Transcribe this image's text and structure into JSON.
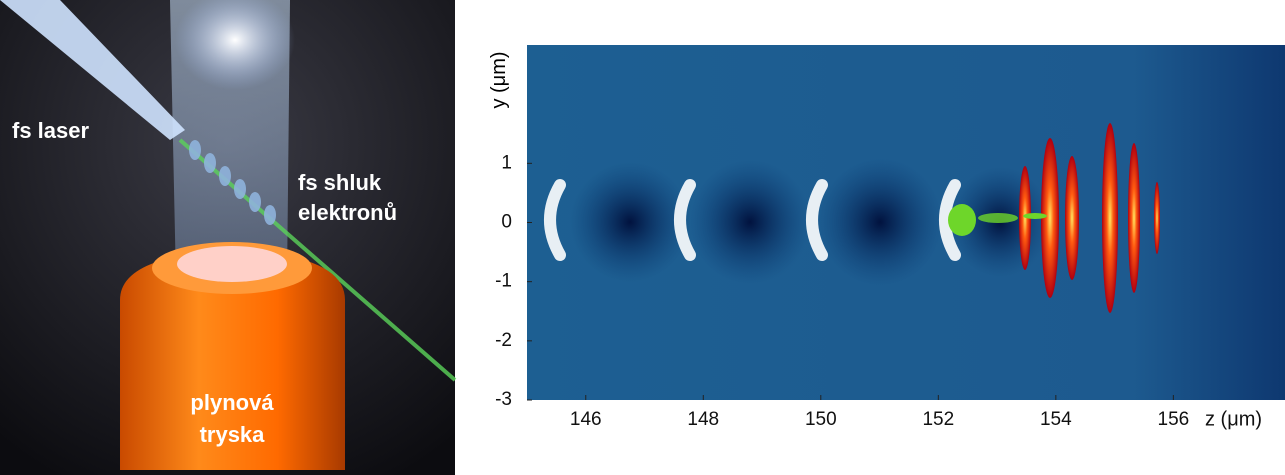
{
  "illustration": {
    "labels": {
      "laser": "fs laser",
      "bunch": [
        "fs shluk",
        "elektronů"
      ],
      "nozzle": [
        "plynová",
        "tryska"
      ]
    }
  },
  "plot": {
    "y_label": "y (μm)",
    "x_label": "z (μm)",
    "xlim": [
      145,
      157.9
    ],
    "ylim": [
      -3,
      3
    ],
    "xticks": [
      146,
      148,
      150,
      152,
      154,
      156
    ],
    "yticks": [
      -3,
      -2,
      -1,
      0,
      1
    ]
  }
}
